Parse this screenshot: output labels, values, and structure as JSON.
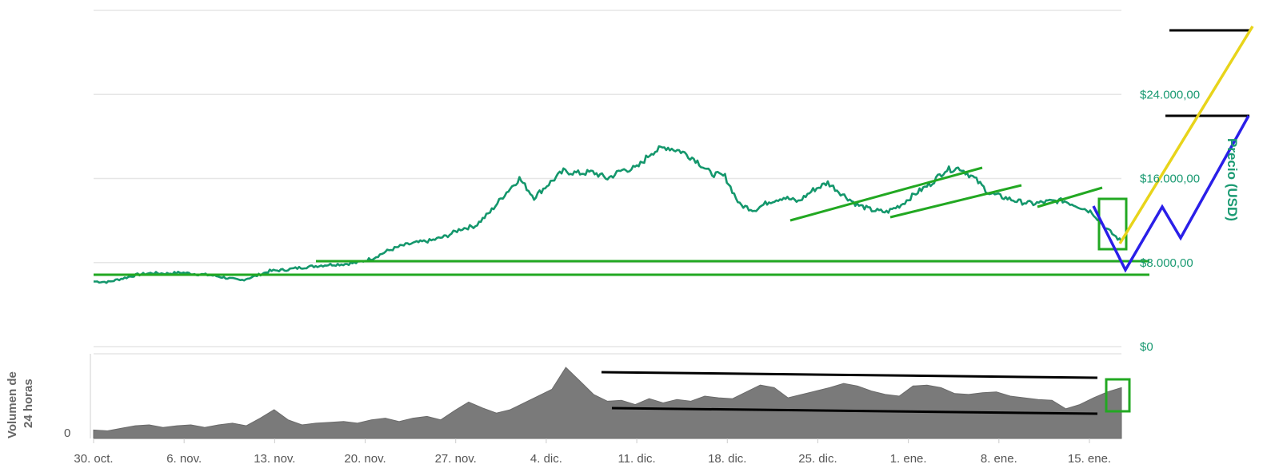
{
  "chart_data": {
    "type": "line",
    "x_ticks": [
      "30. oct.",
      "6. nov.",
      "13. nov.",
      "20. nov.",
      "27. nov.",
      "4. dic.",
      "11. dic.",
      "18. dic.",
      "25. dic.",
      "1. ene.",
      "8. ene.",
      "15. ene."
    ],
    "price_axis": {
      "title": "Precio (USD)",
      "ticks": [
        "$0",
        "$8.000,00",
        "$16.000,00",
        "$24.000,00"
      ],
      "ylim": [
        0,
        32000
      ]
    },
    "volume_axis": {
      "title_lines": [
        "Volumen de",
        "24 horas"
      ],
      "ticks": [
        "0"
      ]
    },
    "series": [
      {
        "values": [
          6200,
          6150,
          6500,
          6850,
          7000,
          6950,
          7050,
          6900,
          6800,
          6550,
          6300,
          6700,
          7200,
          7300,
          7500,
          7650,
          7800,
          7850,
          8000,
          8400,
          9100,
          9600,
          9900,
          10100,
          10500,
          11200,
          11500,
          12800,
          14500,
          16000,
          14200,
          15500,
          16700,
          16500,
          16600,
          16000,
          16800,
          17000,
          18500,
          19000,
          18600,
          17800,
          16500,
          16200,
          13500,
          13000,
          13800,
          14200,
          13800,
          14900,
          15600,
          14500,
          13500,
          13000,
          12800,
          13500,
          14600,
          15500,
          16800,
          17000,
          16000,
          14600,
          14200,
          13800,
          13600,
          13800,
          13900,
          13400,
          12800,
          11200,
          10000
        ]
      }
    ],
    "volume": [
      0.1,
      0.09,
      0.12,
      0.15,
      0.16,
      0.13,
      0.15,
      0.16,
      0.13,
      0.16,
      0.18,
      0.15,
      0.24,
      0.34,
      0.22,
      0.16,
      0.18,
      0.19,
      0.2,
      0.18,
      0.22,
      0.24,
      0.2,
      0.24,
      0.26,
      0.22,
      0.33,
      0.43,
      0.36,
      0.3,
      0.34,
      0.42,
      0.5,
      0.58,
      0.84,
      0.68,
      0.52,
      0.44,
      0.45,
      0.4,
      0.47,
      0.42,
      0.46,
      0.44,
      0.5,
      0.48,
      0.47,
      0.55,
      0.63,
      0.6,
      0.48,
      0.52,
      0.56,
      0.6,
      0.65,
      0.62,
      0.56,
      0.52,
      0.5,
      0.62,
      0.63,
      0.6,
      0.53,
      0.52,
      0.54,
      0.55,
      0.5,
      0.48,
      0.46,
      0.45,
      0.35,
      0.4,
      0.48,
      0.55,
      0.6
    ],
    "annotations": {
      "support_lines": [
        7500,
        8700
      ],
      "volume_trend": "descending"
    },
    "colors": {
      "price_line": "#14976c",
      "support": "#22a822",
      "volume": "#7a7a7a",
      "projection_down": "#2a1fe8",
      "projection_up": "#e8d41a",
      "target": "#000000"
    },
    "grid": true
  }
}
